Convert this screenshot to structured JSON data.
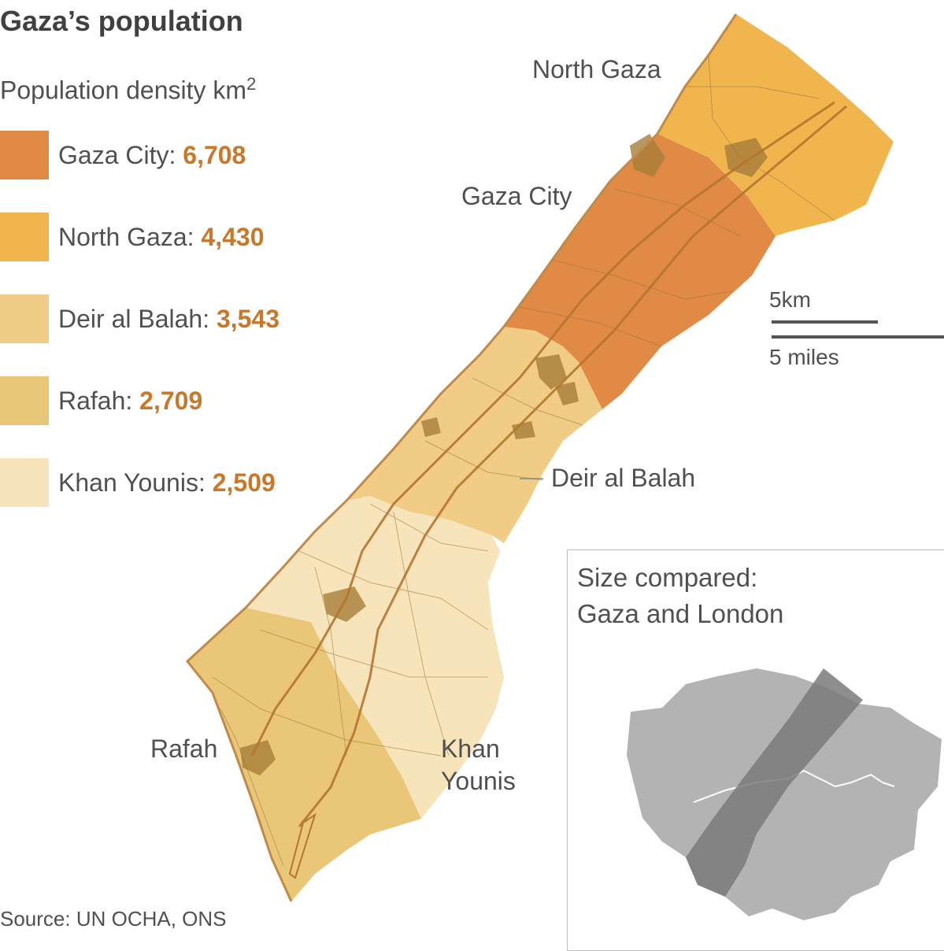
{
  "title": "Gaza’s population",
  "subtitle": "Population density km",
  "subtitle_sup": "2",
  "legend": [
    {
      "name": "Gaza City",
      "value": "6,708",
      "color": "#e08a45"
    },
    {
      "name": "North Gaza",
      "value": "4,430",
      "color": "#f0b54d"
    },
    {
      "name": "Deir al Balah",
      "value": "3,543",
      "color": "#f0cc86"
    },
    {
      "name": "Rafah",
      "value": "2,709",
      "color": "#eac778"
    },
    {
      "name": "Khan Younis",
      "value": "2,509",
      "color": "#f7e4bb"
    }
  ],
  "map_labels": {
    "north_gaza": "North Gaza",
    "gaza_city": "Gaza City",
    "deir_al_balah": "Deir al Balah",
    "rafah": "Rafah",
    "khan_younis_1": "Khan",
    "khan_younis_2": "Younis"
  },
  "scale": {
    "km": "5km",
    "miles": "5 miles"
  },
  "comparison": {
    "title_1": "Size compared:",
    "title_2": "Gaza and London"
  },
  "source": "Source: UN OCHA, ONS",
  "colors": {
    "road": "#b5762f",
    "urban": "#a87d3a",
    "london": "#b3b3b3",
    "gaza_overlay": "#7a7a7a",
    "river": "#ffffff"
  }
}
